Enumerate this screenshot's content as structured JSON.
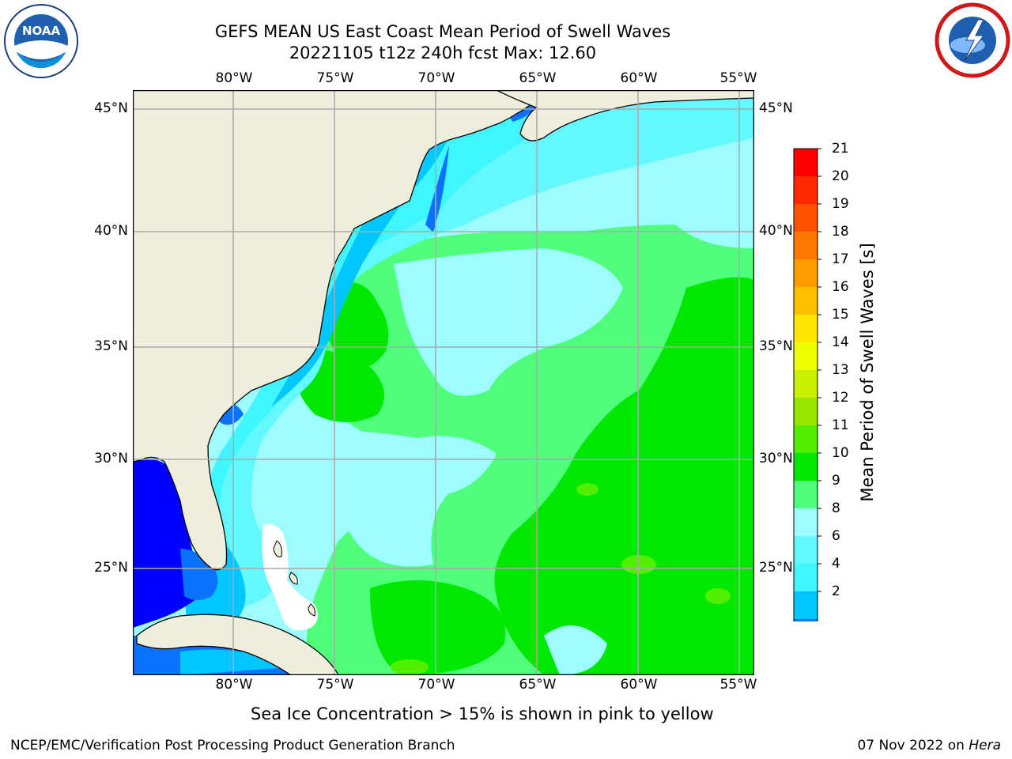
{
  "title": {
    "line1": "GEFS MEAN US East Coast Mean Period of Swell Waves",
    "line2": "20221105 t12z 240h fcst   Max: 12.60"
  },
  "map": {
    "lon_labels": [
      "80°W",
      "75°W",
      "70°W",
      "65°W",
      "60°W",
      "55°W"
    ],
    "lat_labels": [
      "45°N",
      "40°N",
      "35°N",
      "30°N",
      "25°N"
    ],
    "colors": {
      "land": "#efeddb",
      "ocean_le4": "#00c8ff",
      "ocean_4_6": "#3ff6ff",
      "ocean_6_8": "#63f7ff",
      "ocean_8_9": "#9cfcff",
      "ocean_9_10": "#4fff7c",
      "ocean_10_11": "#00e800",
      "ocean_11_12": "#50f000",
      "deep_blue": "#0000ff",
      "mid_blue": "#0a72ff",
      "ice_white": "#ffffff",
      "grid": "#aaaaaa"
    }
  },
  "colorbar": {
    "label": "Mean Period of Swell Waves [s]",
    "ticks": [
      "21",
      "20",
      "19",
      "18",
      "17",
      "16",
      "15",
      "14",
      "13",
      "12",
      "11",
      "10",
      "9",
      "8",
      "6",
      "4",
      "2"
    ],
    "colors_top_to_bottom": [
      "#ff0000",
      "#ff2800",
      "#ff5000",
      "#ff7800",
      "#ff9c00",
      "#ffbe00",
      "#ffe600",
      "#f0ff00",
      "#c8f000",
      "#96e600",
      "#50f000",
      "#00e800",
      "#4fff7c",
      "#9cfcff",
      "#63f7ff",
      "#3ff6ff",
      "#00c8ff",
      "#0a72ff"
    ],
    "extend_color": "#0000ff"
  },
  "subtitle": "Sea Ice Concentration > 15% is shown in pink to yellow",
  "footer": {
    "left": "NCEP/EMC/Verification Post Processing Product Generation Branch",
    "right_date": "07 Nov 2022 on ",
    "right_machine": "Hera"
  },
  "logos": {
    "left_icon": "noaa-logo",
    "left_text": "NOAA",
    "right_icon": "nws-logo"
  }
}
